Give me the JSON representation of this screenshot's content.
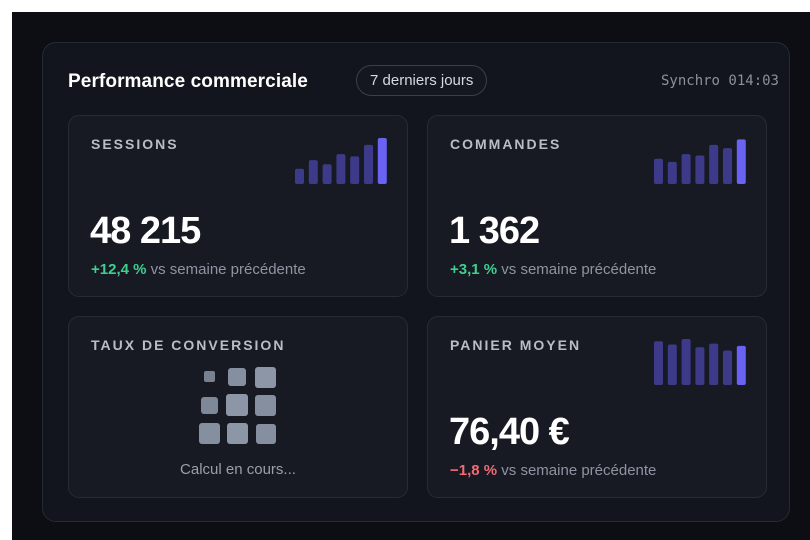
{
  "header": {
    "title": "Performance commerciale",
    "range_label": "7 derniers jours",
    "sync_label": "Synchro 014:03"
  },
  "colors": {
    "accent": "#6a62f2",
    "bar_muted": "#3e3a8a",
    "positive": "#3fcf8e",
    "negative": "#f16a75"
  },
  "cards": {
    "sessions": {
      "label": "SESSIONS",
      "value": "48 215",
      "delta": "+12,4 %",
      "delta_suffix": "vs semaine précédente",
      "trend": [
        0.33,
        0.52,
        0.43,
        0.65,
        0.6,
        0.85,
        1.0
      ]
    },
    "orders": {
      "label": "COMMANDES",
      "value": "1 362",
      "delta": "+3,1 %",
      "delta_suffix": "vs semaine précédente",
      "trend": [
        0.55,
        0.48,
        0.65,
        0.62,
        0.85,
        0.78,
        0.97
      ]
    },
    "conversion": {
      "label": "TAUX DE CONVERSION",
      "loading_text": "Calcul en cours..."
    },
    "basket": {
      "label": "PANIER MOYEN",
      "value": "76,40 €",
      "delta": "−1,8 %",
      "delta_suffix": "vs semaine précédente",
      "trend": [
        0.95,
        0.88,
        1.0,
        0.82,
        0.9,
        0.75,
        0.85
      ]
    }
  }
}
